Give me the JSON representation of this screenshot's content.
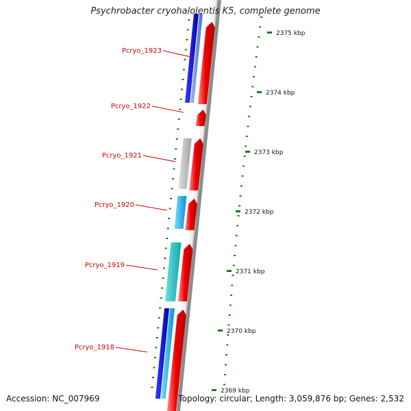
{
  "title": "Psychrobacter cryohalolentis K5, complete genome",
  "footer": {
    "accession": "Accession: NC_007969",
    "topology": "Topology: circular; Length: 3,059,876 bp; Genes: 2,532"
  },
  "colors": {
    "label_red": "#cc0000",
    "tick_green": "#1a7a1a",
    "backbone_gray": "#8c8c8c",
    "cds_red": "#ee0000",
    "blue": "#0000dd",
    "light_blue": "#5a7fd8",
    "cyan": "#00b4e6",
    "teal": "#20c0c0",
    "light_gray": "#b8b8b8"
  },
  "coordinate_labels": [
    "2375 kbp",
    "2374 kbp",
    "2373 kbp",
    "2372 kbp",
    "2371 kbp",
    "2370 kbp",
    "2369 kbp"
  ],
  "gene_labels": [
    "Pcryo_1923",
    "Pcryo_1922",
    "Pcryo_1921",
    "Pcryo_1920",
    "Pcryo_1919",
    "Pcryo_1918"
  ]
}
